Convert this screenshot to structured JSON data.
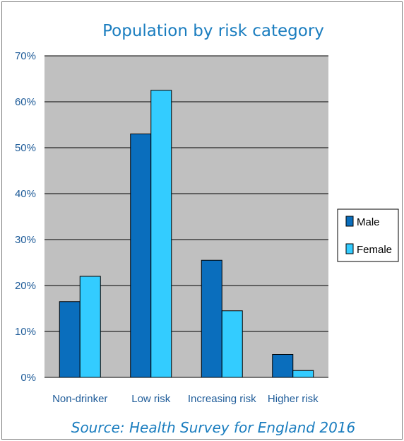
{
  "chart_data": {
    "type": "bar",
    "title": "Population by risk category",
    "categories": [
      "Non-drinker",
      "Low risk",
      "Increasing risk",
      "Higher risk"
    ],
    "series": [
      {
        "name": "Male",
        "values": [
          16.5,
          53,
          25.5,
          5
        ],
        "color": "#0a6ebd"
      },
      {
        "name": "Female",
        "values": [
          22,
          62.5,
          14.5,
          1.5
        ],
        "color": "#33ccff"
      }
    ],
    "xlabel": "",
    "ylabel": "",
    "ylim": [
      0,
      70
    ],
    "y_ticks": [
      "0%",
      "10%",
      "20%",
      "30%",
      "40%",
      "50%",
      "60%",
      "70%"
    ],
    "grid": true,
    "plot_background": "#c0c0c0",
    "legend_position": "right",
    "source": "Source: Health Survey for England 2016"
  }
}
